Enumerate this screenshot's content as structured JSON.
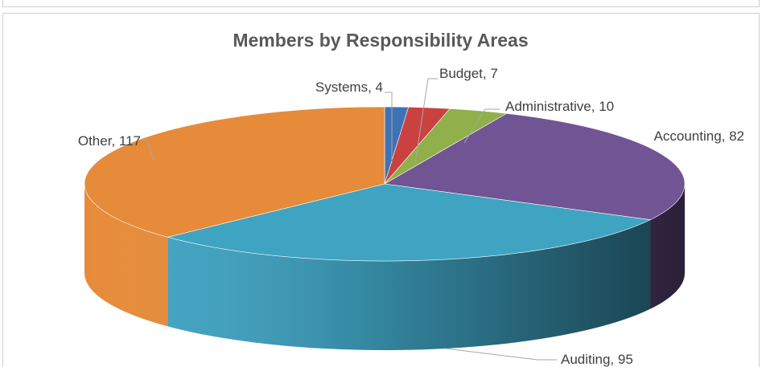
{
  "chart_data": {
    "type": "pie",
    "title": "Members by Responsibility Areas",
    "categories": [
      "Systems",
      "Budget",
      "Administrative",
      "Accounting",
      "Auditing",
      "Other"
    ],
    "values": [
      4,
      7,
      10,
      82,
      95,
      117
    ],
    "data_labels": [
      "Systems, 4",
      "Budget, 7",
      "Administrative, 10",
      "Accounting, 82",
      "Auditing, 95",
      "Other, 117"
    ],
    "colors": [
      "#3f72b5",
      "#c9423f",
      "#8fb04a",
      "#705494",
      "#3fa3c2",
      "#e68b3a"
    ],
    "style": "3d",
    "legend": "none"
  }
}
